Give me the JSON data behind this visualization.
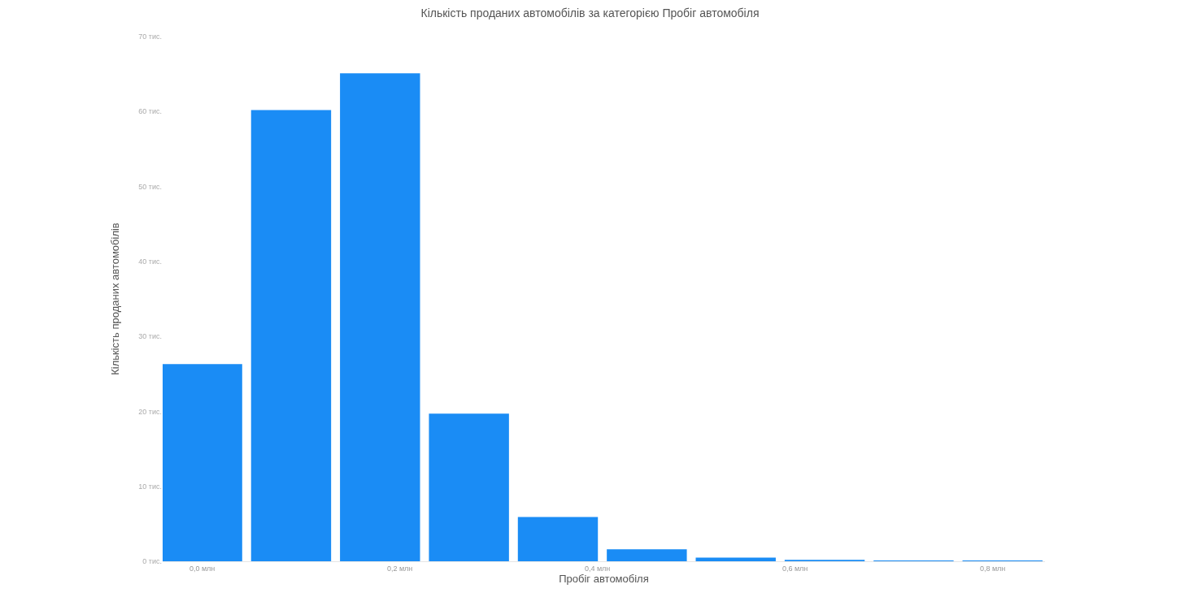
{
  "chart_data": {
    "type": "bar",
    "title": "Кількість проданих автомобілів за категорією Пробіг автомобіля",
    "xlabel": "Пробіг автомобіля",
    "ylabel": "Кількість проданих автомобілів",
    "x": [
      0,
      0.09,
      0.18,
      0.27,
      0.36,
      0.45,
      0.54,
      0.63,
      0.72,
      0.81
    ],
    "values": [
      26.3,
      60.2,
      65.1,
      19.7,
      5.9,
      1.6,
      0.5,
      0.2,
      0.1,
      0.1
    ],
    "color": "#1a8cf5",
    "xlim": [
      -0.04,
      0.853
    ],
    "xticks": [
      {
        "value": 0,
        "label": "0,0 млн"
      },
      {
        "value": 0.2,
        "label": "0,2 млн"
      },
      {
        "value": 0.4,
        "label": "0,4 млн"
      },
      {
        "value": 0.6,
        "label": "0,6 млн"
      },
      {
        "value": 0.8,
        "label": "0,8 млн"
      }
    ],
    "ylim": [
      0,
      70
    ],
    "yticks": [
      {
        "value": 0,
        "label": "0 тис."
      },
      {
        "value": 10,
        "label": "10 тис."
      },
      {
        "value": 20,
        "label": "20 тис."
      },
      {
        "value": 30,
        "label": "30 тис."
      },
      {
        "value": 40,
        "label": "40 тис."
      },
      {
        "value": 50,
        "label": "50 тис."
      },
      {
        "value": 60,
        "label": "60 тис."
      },
      {
        "value": 70,
        "label": "70 тис."
      }
    ],
    "grid": false
  }
}
